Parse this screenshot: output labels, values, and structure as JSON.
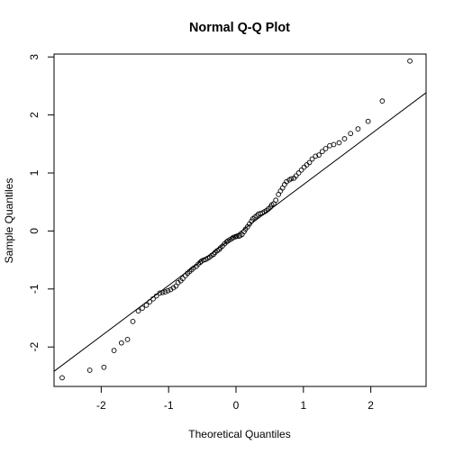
{
  "chart_data": {
    "type": "scatter",
    "title": "Normal Q-Q Plot",
    "xlabel": "Theoretical Quantiles",
    "ylabel": "Sample Quantiles",
    "xlim": [
      -2.7,
      2.82
    ],
    "ylim": [
      -2.68,
      3.05
    ],
    "xticks": [
      -2,
      -1,
      0,
      1,
      2
    ],
    "yticks": [
      -2,
      -1,
      0,
      1,
      2,
      3
    ],
    "xtick_labels": [
      "-2",
      "-1",
      "0",
      "1",
      "2"
    ],
    "ytick_labels": [
      "-2",
      "-1",
      "0",
      "1",
      "2",
      "3"
    ],
    "grid": false,
    "reference_line": {
      "intercept": -0.07,
      "slope": 0.87
    },
    "points": {
      "x": [
        -2.58,
        -2.17,
        -1.96,
        -1.81,
        -1.7,
        -1.61,
        -1.53,
        -1.45,
        -1.39,
        -1.33,
        -1.28,
        -1.23,
        -1.18,
        -1.13,
        -1.09,
        -1.05,
        -1.01,
        -0.97,
        -0.93,
        -0.89,
        -0.86,
        -0.82,
        -0.79,
        -0.75,
        -0.72,
        -0.69,
        -0.66,
        -0.63,
        -0.59,
        -0.56,
        -0.53,
        -0.51,
        -0.48,
        -0.45,
        -0.42,
        -0.39,
        -0.36,
        -0.33,
        -0.31,
        -0.28,
        -0.25,
        -0.23,
        -0.2,
        -0.17,
        -0.14,
        -0.12,
        -0.09,
        -0.06,
        -0.04,
        -0.01,
        0.01,
        0.04,
        0.06,
        0.09,
        0.12,
        0.14,
        0.17,
        0.2,
        0.23,
        0.25,
        0.28,
        0.31,
        0.33,
        0.36,
        0.39,
        0.42,
        0.45,
        0.48,
        0.51,
        0.53,
        0.56,
        0.59,
        0.63,
        0.66,
        0.69,
        0.72,
        0.75,
        0.79,
        0.82,
        0.86,
        0.89,
        0.93,
        0.97,
        1.01,
        1.05,
        1.09,
        1.13,
        1.18,
        1.23,
        1.28,
        1.33,
        1.39,
        1.45,
        1.53,
        1.61,
        1.7,
        1.81,
        1.96,
        2.17,
        2.58
      ],
      "y": [
        -2.53,
        -2.4,
        -2.35,
        -2.06,
        -1.93,
        -1.87,
        -1.56,
        -1.38,
        -1.33,
        -1.28,
        -1.22,
        -1.17,
        -1.12,
        -1.07,
        -1.06,
        -1.05,
        -1.03,
        -1.01,
        -0.98,
        -0.95,
        -0.89,
        -0.86,
        -0.82,
        -0.77,
        -0.73,
        -0.7,
        -0.67,
        -0.64,
        -0.61,
        -0.57,
        -0.54,
        -0.52,
        -0.5,
        -0.49,
        -0.47,
        -0.45,
        -0.42,
        -0.4,
        -0.37,
        -0.34,
        -0.32,
        -0.29,
        -0.26,
        -0.22,
        -0.19,
        -0.17,
        -0.15,
        -0.13,
        -0.11,
        -0.1,
        -0.09,
        -0.09,
        -0.08,
        -0.06,
        -0.01,
        0.03,
        0.07,
        0.12,
        0.17,
        0.21,
        0.24,
        0.26,
        0.29,
        0.3,
        0.31,
        0.33,
        0.35,
        0.38,
        0.41,
        0.45,
        0.47,
        0.53,
        0.63,
        0.69,
        0.74,
        0.8,
        0.85,
        0.88,
        0.9,
        0.91,
        0.95,
        1.0,
        1.05,
        1.1,
        1.14,
        1.18,
        1.24,
        1.29,
        1.31,
        1.37,
        1.42,
        1.47,
        1.49,
        1.52,
        1.59,
        1.68,
        1.76,
        1.89,
        2.24,
        2.93
      ]
    }
  }
}
